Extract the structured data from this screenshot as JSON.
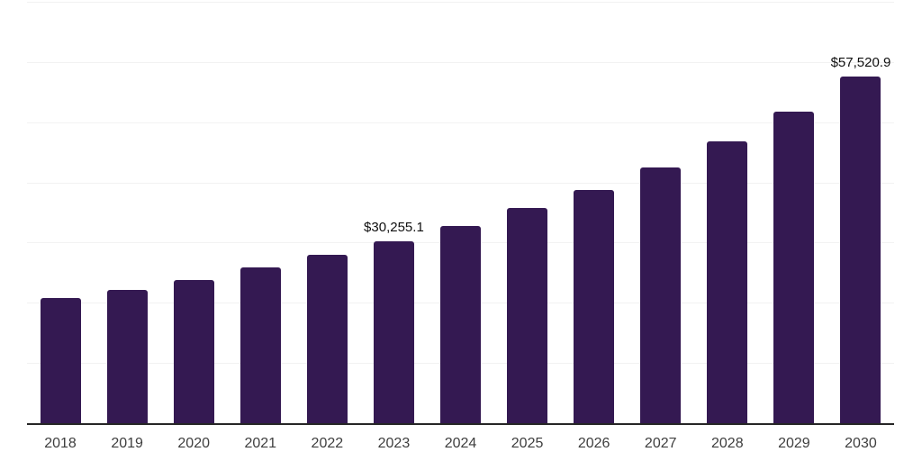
{
  "chart_data": {
    "type": "bar",
    "title": "",
    "xlabel": "",
    "ylabel": "",
    "categories": [
      "2018",
      "2019",
      "2020",
      "2021",
      "2022",
      "2023",
      "2024",
      "2025",
      "2026",
      "2027",
      "2028",
      "2029",
      "2030"
    ],
    "values": [
      20850,
      22200,
      23850,
      25950,
      27900,
      30255.1,
      32800,
      35700,
      38800,
      42550,
      46750,
      51750,
      57520.9
    ],
    "value_labels": {
      "2023": "$30,255.1",
      "2030": "$57,520.9"
    },
    "ylim": [
      0,
      70000
    ],
    "gridline_step": 10000,
    "grid": "horizontal",
    "legend_position": "none",
    "bar_color": "#341952",
    "background_color": "#ffffff",
    "gridline_color": "#f2f2f2",
    "axis_line_color": "#262626",
    "tick_label_color": "#3e3e3e",
    "value_label_color": "#0f0f0f"
  }
}
